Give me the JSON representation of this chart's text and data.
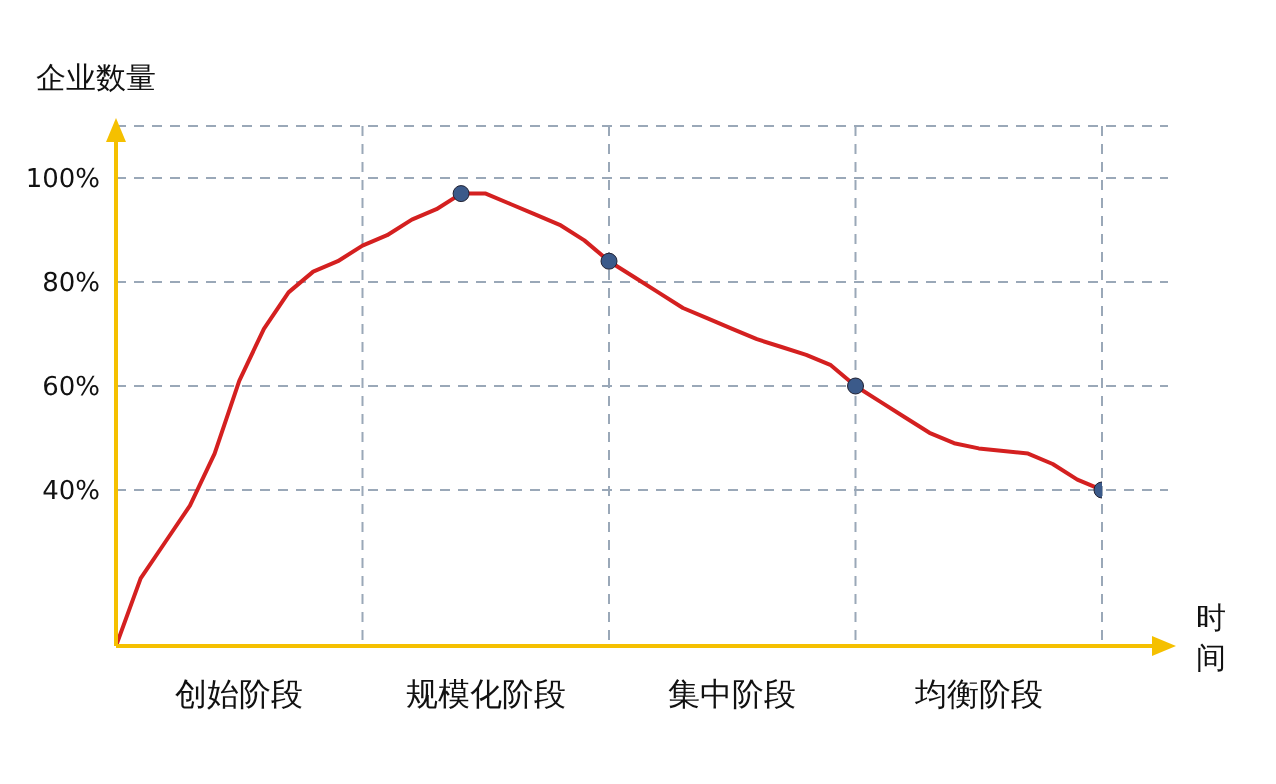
{
  "chart_data": {
    "type": "line",
    "ylabel": "企业数量",
    "xlabel": "时间",
    "ylim": [
      10,
      110
    ],
    "categories": [
      null,
      null,
      null,
      null,
      null,
      "创始阶段",
      null,
      null,
      null,
      null,
      null,
      null,
      null,
      null,
      null,
      "规模化阶段",
      null,
      null,
      null,
      null,
      null,
      null,
      null,
      null,
      null,
      "集中阶段",
      null,
      null,
      null,
      null,
      null,
      null,
      null,
      null,
      null,
      "均衡阶段",
      null,
      null,
      null,
      null,
      null
    ],
    "yticks": [
      {
        "value": 40,
        "label": "40%"
      },
      {
        "value": 60,
        "label": "60%"
      },
      {
        "value": 80,
        "label": "80%"
      },
      {
        "value": 100,
        "label": "100%"
      }
    ],
    "grid": true,
    "series": [
      {
        "color": "#d42020",
        "marker": "none",
        "line_style": "solid",
        "values": [
          10,
          23,
          30,
          37,
          47,
          61,
          71,
          78,
          82,
          84,
          87,
          89,
          92,
          94,
          97,
          97,
          95,
          93,
          91,
          88,
          84,
          81,
          78,
          75,
          73,
          71,
          69,
          67.5,
          66,
          64,
          60,
          57,
          54,
          51,
          49,
          48,
          47.5,
          47,
          45,
          42,
          40
        ]
      },
      {
        "type": "scatter",
        "color": "#3b5a8a",
        "marker": "circle",
        "values": [
          null,
          null,
          null,
          null,
          null,
          null,
          null,
          null,
          null,
          null,
          null,
          null,
          null,
          null,
          97,
          null,
          null,
          null,
          null,
          null,
          84,
          null,
          null,
          null,
          null,
          null,
          null,
          null,
          null,
          null,
          60,
          null,
          null,
          null,
          null,
          null,
          null,
          null,
          null,
          null,
          40
        ]
      }
    ]
  }
}
